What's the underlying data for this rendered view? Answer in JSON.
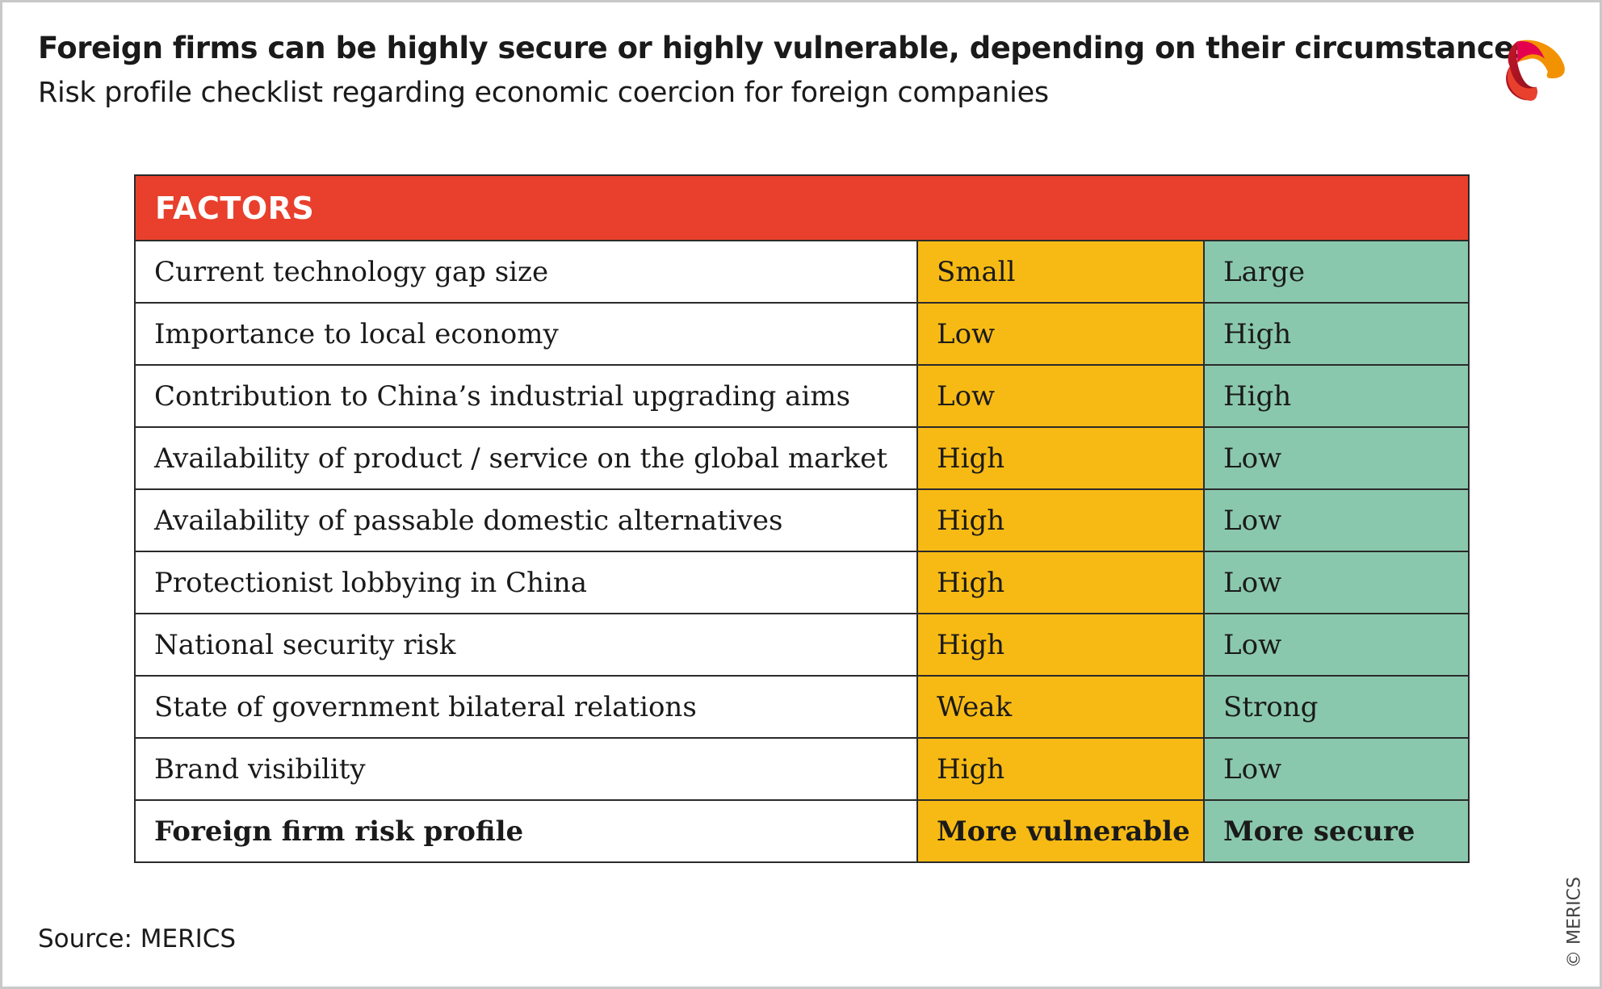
{
  "title": "Foreign firms can be highly secure or highly vulnerable, depending on their circumstances",
  "subtitle": "Risk profile checklist regarding economic coercion for foreign companies",
  "table": {
    "header": "FACTORS",
    "rows": [
      {
        "factor": "Current technology gap size",
        "vulnerable": "Small",
        "secure": "Large"
      },
      {
        "factor": "Importance to local economy",
        "vulnerable": "Low",
        "secure": "High"
      },
      {
        "factor": "Contribution to China’s industrial upgrading aims",
        "vulnerable": "Low",
        "secure": "High"
      },
      {
        "factor": "Availability of product / service on the global market",
        "vulnerable": "High",
        "secure": "Low"
      },
      {
        "factor": "Availability of passable domestic alternatives",
        "vulnerable": "High",
        "secure": "Low"
      },
      {
        "factor": "Protectionist lobbying in China",
        "vulnerable": "High",
        "secure": "Low"
      },
      {
        "factor": "National security risk",
        "vulnerable": "High",
        "secure": "Low"
      },
      {
        "factor": "State of government bilateral relations",
        "vulnerable": "Weak",
        "secure": "Strong"
      },
      {
        "factor": "Brand visibility",
        "vulnerable": "High",
        "secure": "Low"
      }
    ],
    "summary": {
      "factor": "Foreign firm risk profile",
      "vulnerable": "More vulnerable",
      "secure": "More secure"
    }
  },
  "source": "Source: MERICS",
  "copyright": "© MERICS",
  "colors": {
    "header": "#E8402C",
    "vulnerable": "#F7BA14",
    "secure": "#8AC8AD"
  }
}
